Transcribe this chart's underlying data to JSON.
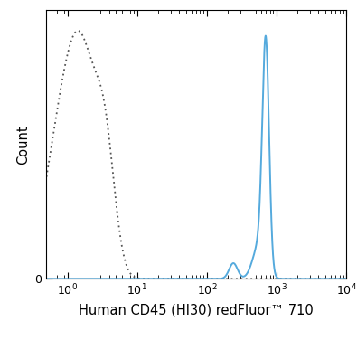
{
  "title": "",
  "xlabel": "Human CD45 (HI30) redFluor™ 710",
  "ylabel": "Count",
  "xlim": [
    0.5,
    10000
  ],
  "ylim": [
    0,
    1.05
  ],
  "background_color": "#ffffff",
  "solid_color": "#55aadd",
  "dashed_color": "#555555",
  "solid_linewidth": 1.4,
  "dashed_linewidth": 1.3,
  "xlabel_fontsize": 10.5,
  "ylabel_fontsize": 10.5,
  "tick_fontsize": 9
}
